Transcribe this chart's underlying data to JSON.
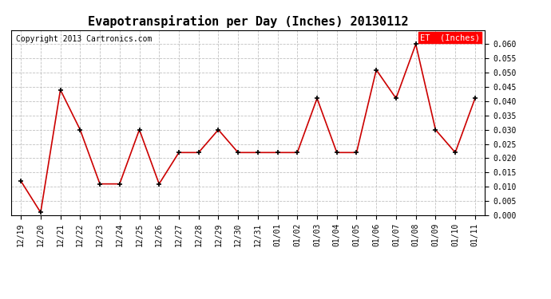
{
  "title": "Evapotranspiration per Day (Inches) 20130112",
  "copyright": "Copyright 2013 Cartronics.com",
  "legend_label": "ET  (Inches)",
  "labels": [
    "12/19",
    "12/20",
    "12/21",
    "12/22",
    "12/23",
    "12/24",
    "12/25",
    "12/26",
    "12/27",
    "12/28",
    "12/29",
    "12/30",
    "12/31",
    "01/01",
    "01/02",
    "01/03",
    "01/04",
    "01/05",
    "01/06",
    "01/07",
    "01/08",
    "01/09",
    "01/10",
    "01/11"
  ],
  "values": [
    0.012,
    0.001,
    0.044,
    0.03,
    0.011,
    0.011,
    0.03,
    0.011,
    0.022,
    0.022,
    0.03,
    0.022,
    0.022,
    0.022,
    0.022,
    0.041,
    0.022,
    0.022,
    0.051,
    0.041,
    0.06,
    0.03,
    0.022,
    0.041
  ],
  "line_color": "#cc0000",
  "marker_color": "#000000",
  "background_color": "#ffffff",
  "grid_color": "#bbbbbb",
  "ylim": [
    0.0,
    0.065
  ],
  "yticks": [
    0.0,
    0.005,
    0.01,
    0.015,
    0.02,
    0.025,
    0.03,
    0.035,
    0.04,
    0.045,
    0.05,
    0.055,
    0.06
  ],
  "title_fontsize": 11,
  "copyright_fontsize": 7,
  "legend_fontsize": 7.5,
  "tick_fontsize": 7
}
